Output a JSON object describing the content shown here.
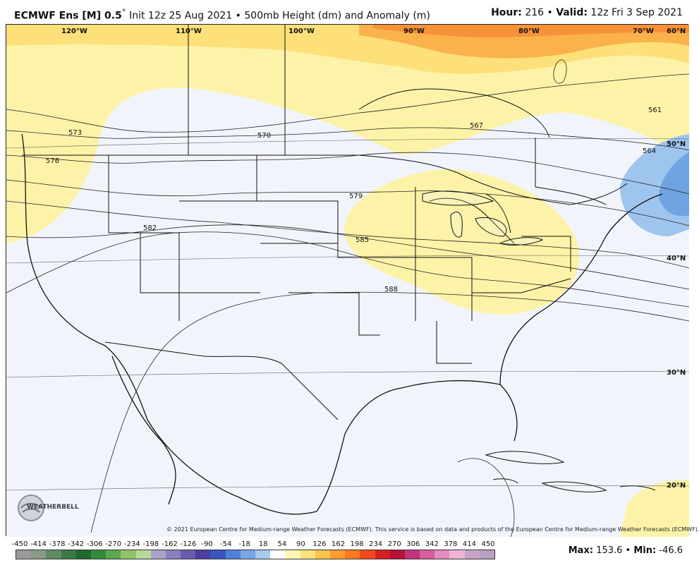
{
  "header": {
    "model": "ECMWF Ens [M] 0.5",
    "degree": "°",
    "init": "Init 12z 25 Aug 2021",
    "bullet": "•",
    "field": "500mb Height (dm) and Anomaly (m)",
    "hour_label": "Hour:",
    "hour_value": "216",
    "valid_label": "Valid:",
    "valid_value": "12z Fri 3 Sep 2021"
  },
  "map": {
    "lon_labels": [
      "120°W",
      "110°W",
      "100°W",
      "90°W",
      "80°W",
      "70°W",
      "60°N"
    ],
    "lat_labels": [
      "50°N",
      "40°N",
      "30°N",
      "20°N"
    ],
    "contour_labels": [
      "573",
      "576",
      "570",
      "567",
      "561",
      "564",
      "579",
      "582",
      "585",
      "588"
    ],
    "copyright": "© 2021 European Centre for Medium-range Weather Forecasts (ECMWF). This service is based on data and products of the European Centre for Medium-range Weather Forecasts (ECMWF).",
    "logo_text": "WEATHERBELL"
  },
  "colorbar": {
    "ticks": [
      "-450",
      "-414",
      "-378",
      "-342",
      "-306",
      "-270",
      "-234",
      "-198",
      "-162",
      "-126",
      "-90",
      "-54",
      "-18",
      "18",
      "54",
      "90",
      "126",
      "162",
      "198",
      "234",
      "270",
      "306",
      "342",
      "378",
      "414",
      "450"
    ],
    "colors": [
      "#9a9a9a",
      "#8a9a8a",
      "#5f8c62",
      "#3c7a44",
      "#1f6b2d",
      "#2f8c3a",
      "#5aa84f",
      "#8fc46a",
      "#b7d99a",
      "#a9a3c9",
      "#8a7fbf",
      "#6a5bb0",
      "#4b3ea3",
      "#3a55c0",
      "#4f7fd6",
      "#79a6e6",
      "#a6c9f2",
      "#ffffff",
      "#fff7b3",
      "#ffe27a",
      "#ffc24a",
      "#ff9d2e",
      "#ff7a1f",
      "#f24a1a",
      "#d61f1f",
      "#b51236",
      "#c2337a",
      "#d65c9e",
      "#e58bbd",
      "#f0b3d4",
      "#c8a4c8",
      "#b8a0c0"
    ]
  },
  "stats": {
    "max_label": "Max:",
    "max_value": "153.6",
    "sep": "•",
    "min_label": "Min:",
    "min_value": "-46.6"
  },
  "colors": {
    "anom_pos_light": "#fdf3a8",
    "anom_pos_mid": "#fde07a",
    "anom_pos_high": "#fbb24a",
    "anom_pos_max": "#f7913a",
    "anom_neg": "#9ec5ee",
    "anom_neg_deep": "#6fa3e2",
    "neutral": "#f2f4fc"
  }
}
